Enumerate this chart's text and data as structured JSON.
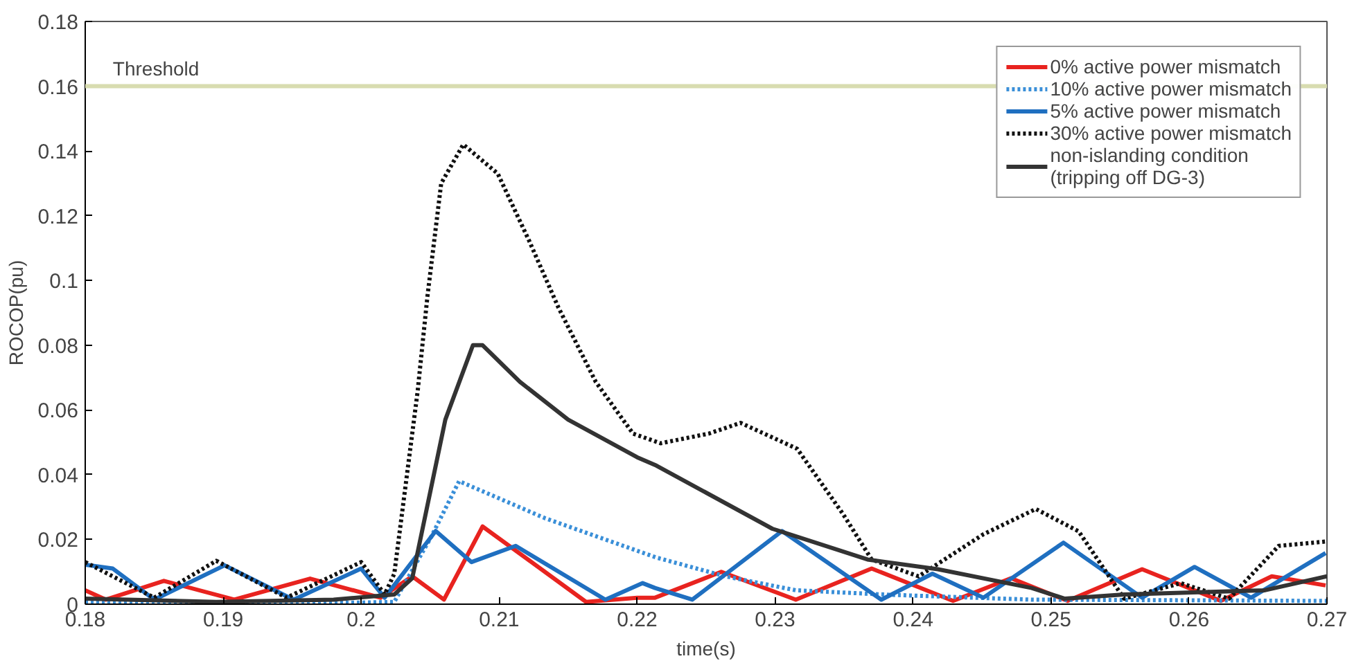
{
  "chart_data": {
    "type": "line",
    "xlabel": "time(s)",
    "ylabel": "ROCOP(pu)",
    "xlim": [
      0.18,
      0.27
    ],
    "ylim": [
      0,
      0.18
    ],
    "xticks": [
      0.18,
      0.19,
      {
        "value": 0.2,
        "label": "0.2"
      },
      0.21,
      0.22,
      0.23,
      0.24,
      0.25,
      0.26,
      0.27
    ],
    "yticks": [
      0,
      0.02,
      0.04,
      0.06,
      0.08,
      {
        "value": 0.1,
        "label": "0.1"
      },
      0.12,
      0.14,
      0.16,
      0.18
    ],
    "grid": false,
    "legend": "top right",
    "ref_lines": [
      {
        "axis": "y",
        "value": 0.16,
        "label": "Threshold",
        "color": "#d8dcb0"
      }
    ],
    "series": [
      {
        "name": "0% active power mismatch",
        "color": "#e8231f",
        "line_style": "solid",
        "x": [
          0.18,
          0.1815,
          0.1857,
          0.1908,
          0.1963,
          0.2014,
          0.2037,
          0.206,
          0.2088,
          0.2163,
          0.22,
          0.2213,
          0.2261,
          0.2315,
          0.237,
          0.2429,
          0.2471,
          0.2512,
          0.2566,
          0.2623,
          0.266,
          0.2699
        ],
        "values": [
          0.0043,
          0.0014,
          0.0072,
          0.0014,
          0.0079,
          0.002,
          0.0086,
          0.0014,
          0.024,
          0.0007,
          0.002,
          0.002,
          0.01,
          0.0014,
          0.011,
          0.001,
          0.008,
          0.001,
          0.0108,
          0.001,
          0.0086,
          0.0058
        ]
      },
      {
        "name": "10% active power mismatch",
        "color": "#3a8fd8",
        "line_style": "dotted",
        "x": [
          0.18,
          0.19,
          0.2,
          0.2024,
          0.2051,
          0.2071,
          0.2133,
          0.2214,
          0.2264,
          0.2315,
          0.2383,
          0.2486,
          0.27
        ],
        "values": [
          0.0005,
          0.0005,
          0.0005,
          0.0007,
          0.021,
          0.038,
          0.0266,
          0.0144,
          0.0086,
          0.0043,
          0.0029,
          0.0014,
          0.001
        ]
      },
      {
        "name": "5% active power mismatch",
        "color": "#1f6fc0",
        "line_style": "solid",
        "x": [
          0.18,
          0.182,
          0.185,
          0.1901,
          0.1951,
          0.2,
          0.2017,
          0.2054,
          0.208,
          0.2112,
          0.2177,
          0.2204,
          0.2213,
          0.224,
          0.2305,
          0.2377,
          0.2414,
          0.2451,
          0.2509,
          0.2566,
          0.2604,
          0.2645,
          0.2699
        ],
        "values": [
          0.0122,
          0.011,
          0.0014,
          0.012,
          0.0014,
          0.011,
          0.002,
          0.0226,
          0.013,
          0.018,
          0.0014,
          0.0065,
          0.005,
          0.0014,
          0.0226,
          0.0014,
          0.0094,
          0.002,
          0.019,
          0.002,
          0.0115,
          0.002,
          0.0158
        ]
      },
      {
        "name": "30% active power mismatch",
        "color": "#111111",
        "line_style": "dotted",
        "x": [
          0.18,
          0.185,
          0.1895,
          0.1946,
          0.2,
          0.2017,
          0.2024,
          0.2041,
          0.2048,
          0.2058,
          0.2074,
          0.2099,
          0.2122,
          0.2143,
          0.217,
          0.2197,
          0.2217,
          0.2252,
          0.2275,
          0.2316,
          0.2349,
          0.237,
          0.2404,
          0.2451,
          0.2489,
          0.252,
          0.2553,
          0.2594,
          0.2629,
          0.2665,
          0.27
        ],
        "values": [
          0.013,
          0.002,
          0.0134,
          0.002,
          0.013,
          0.003,
          0.0094,
          0.066,
          0.095,
          0.13,
          0.142,
          0.133,
          0.112,
          0.0916,
          0.0687,
          0.0527,
          0.0497,
          0.0527,
          0.056,
          0.048,
          0.028,
          0.0138,
          0.0086,
          0.0216,
          0.0294,
          0.0225,
          0.0017,
          0.0065,
          0.0017,
          0.018,
          0.0194
        ]
      },
      {
        "name": "non-islanding condition\n(tripping off DG-3)",
        "color": "#333333",
        "line_style": "solid",
        "x": [
          0.18,
          0.1895,
          0.198,
          0.2024,
          0.2037,
          0.2061,
          0.2081,
          0.2088,
          0.2115,
          0.215,
          0.22,
          0.2214,
          0.2298,
          0.2367,
          0.2418,
          0.2486,
          0.251,
          0.2553,
          0.2655,
          0.27
        ],
        "values": [
          0.0017,
          0.0007,
          0.0014,
          0.003,
          0.008,
          0.057,
          0.08,
          0.08,
          0.0687,
          0.057,
          0.0454,
          0.0428,
          0.0233,
          0.0138,
          0.0108,
          0.005,
          0.0017,
          0.003,
          0.0043,
          0.0086
        ]
      }
    ]
  }
}
